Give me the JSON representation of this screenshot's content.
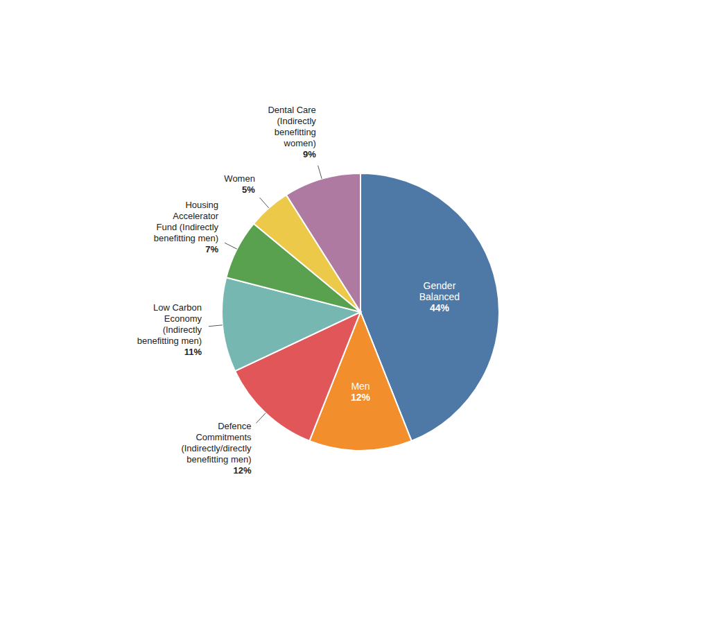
{
  "chart_data": {
    "type": "pie",
    "categories": [
      "Gender\nBalanced",
      "Men",
      "Defence\nCommitments\n(Indirectly/directly\nbenefitting men)",
      "Low Carbon\nEconomy\n(Indirectly\nbenefitting men)",
      "Housing\nAccelerator\nFund (Indirectly\nbenefitting men)",
      "Women",
      "Dental Care\n(Indirectly\nbenefitting\nwomen)"
    ],
    "values": [
      44,
      12,
      12,
      11,
      7,
      5,
      9
    ],
    "value_labels": [
      "44%",
      "12%",
      "12%",
      "11%",
      "7%",
      "5%",
      "9%"
    ],
    "data_labels": true
  }
}
